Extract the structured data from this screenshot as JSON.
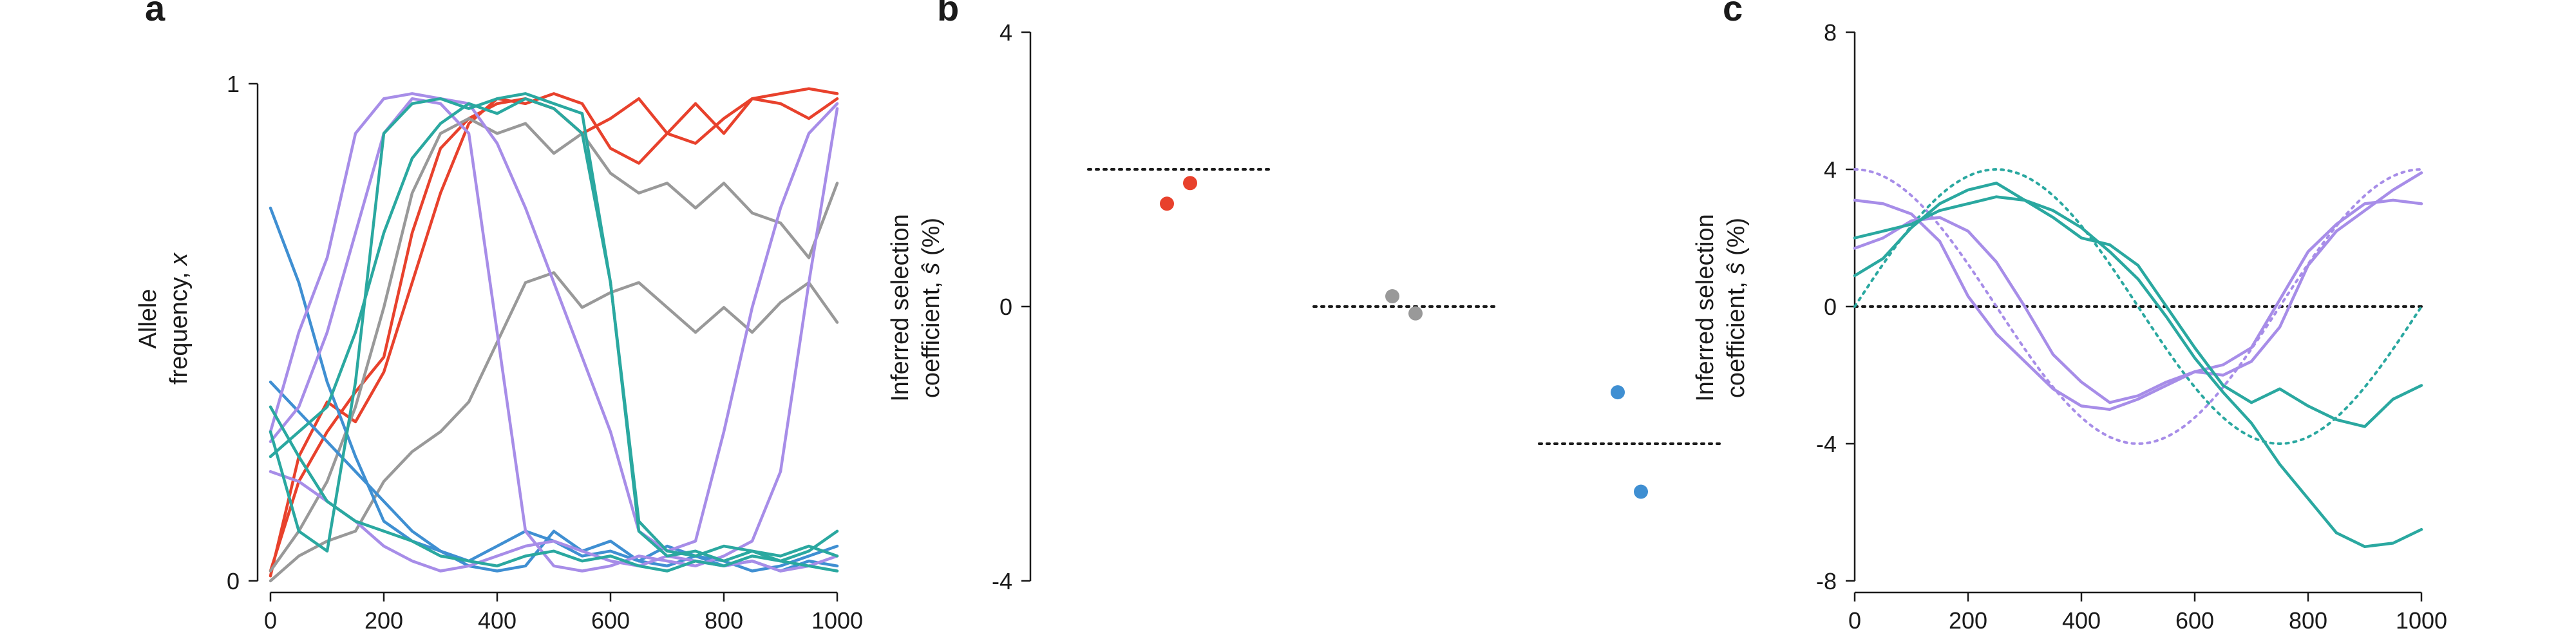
{
  "colors": {
    "red": "#e8412c",
    "gray": "#999999",
    "blue": "#3f8fd2",
    "purple": "#a78de8",
    "teal": "#2aa8a0",
    "axis": "#1a1a1a"
  },
  "chart_data": [
    {
      "id": "a",
      "type": "line",
      "panel_label": "a",
      "ylabel_line1": "Allele",
      "ylabel_line2": "frequency, ",
      "ylabel_var": "x",
      "xlim": [
        0,
        1000
      ],
      "ylim": [
        0,
        1
      ],
      "xticks": [
        "0",
        "200",
        "400",
        "600",
        "800",
        "1000"
      ],
      "yticks": [
        "0",
        "1"
      ],
      "series": [
        {
          "color": "red",
          "x": [
            0,
            50,
            100,
            150,
            200,
            250,
            300,
            350,
            400,
            450,
            500,
            550,
            600,
            650,
            700,
            750,
            800,
            850,
            900,
            950,
            1000
          ],
          "y": [
            0.02,
            0.2,
            0.3,
            0.38,
            0.45,
            0.7,
            0.87,
            0.93,
            0.96,
            0.97,
            0.95,
            0.9,
            0.93,
            0.97,
            0.9,
            0.96,
            0.9,
            0.97,
            0.98,
            0.99,
            0.98
          ]
        },
        {
          "color": "red",
          "x": [
            0,
            50,
            100,
            150,
            200,
            250,
            300,
            350,
            400,
            450,
            500,
            550,
            600,
            650,
            700,
            750,
            800,
            850,
            900,
            950,
            1000
          ],
          "y": [
            0.01,
            0.25,
            0.36,
            0.32,
            0.42,
            0.6,
            0.78,
            0.92,
            0.97,
            0.96,
            0.98,
            0.96,
            0.87,
            0.84,
            0.9,
            0.88,
            0.93,
            0.97,
            0.96,
            0.93,
            0.97
          ]
        },
        {
          "color": "gray",
          "x": [
            0,
            50,
            100,
            150,
            200,
            250,
            300,
            350,
            400,
            450,
            500,
            550,
            600,
            650,
            700,
            750,
            800,
            850,
            900,
            950,
            1000
          ],
          "y": [
            0.0,
            0.05,
            0.08,
            0.1,
            0.2,
            0.26,
            0.3,
            0.36,
            0.48,
            0.6,
            0.62,
            0.55,
            0.58,
            0.6,
            0.55,
            0.5,
            0.55,
            0.5,
            0.56,
            0.6,
            0.52
          ]
        },
        {
          "color": "gray",
          "x": [
            0,
            50,
            100,
            150,
            200,
            250,
            300,
            350,
            400,
            450,
            500,
            550,
            600,
            650,
            700,
            750,
            800,
            850,
            900,
            950,
            1000
          ],
          "y": [
            0.02,
            0.1,
            0.2,
            0.35,
            0.55,
            0.78,
            0.9,
            0.93,
            0.9,
            0.92,
            0.86,
            0.9,
            0.82,
            0.78,
            0.8,
            0.75,
            0.8,
            0.74,
            0.72,
            0.65,
            0.8
          ]
        },
        {
          "color": "blue",
          "x": [
            0,
            50,
            100,
            150,
            200,
            250,
            300,
            350,
            400,
            450,
            500,
            550,
            600,
            650,
            700,
            750,
            800,
            850,
            900,
            950,
            1000
          ],
          "y": [
            0.75,
            0.6,
            0.4,
            0.25,
            0.12,
            0.08,
            0.06,
            0.03,
            0.02,
            0.03,
            0.1,
            0.06,
            0.08,
            0.04,
            0.03,
            0.05,
            0.04,
            0.02,
            0.03,
            0.05,
            0.07
          ]
        },
        {
          "color": "blue",
          "x": [
            0,
            50,
            100,
            150,
            200,
            250,
            300,
            350,
            400,
            450,
            500,
            550,
            600,
            650,
            700,
            750,
            800,
            850,
            900,
            950,
            1000
          ],
          "y": [
            0.4,
            0.34,
            0.28,
            0.22,
            0.16,
            0.1,
            0.06,
            0.04,
            0.07,
            0.1,
            0.08,
            0.05,
            0.06,
            0.04,
            0.07,
            0.05,
            0.03,
            0.04,
            0.02,
            0.04,
            0.03
          ]
        },
        {
          "color": "purple",
          "x": [
            0,
            50,
            100,
            150,
            200,
            250,
            300,
            350,
            400,
            450,
            500,
            550,
            600,
            650,
            700,
            750,
            800,
            850,
            900,
            950,
            1000
          ],
          "y": [
            0.3,
            0.5,
            0.65,
            0.9,
            0.97,
            0.98,
            0.97,
            0.96,
            0.88,
            0.75,
            0.6,
            0.45,
            0.3,
            0.1,
            0.06,
            0.08,
            0.3,
            0.55,
            0.75,
            0.9,
            0.96
          ]
        },
        {
          "color": "purple",
          "x": [
            0,
            50,
            100,
            150,
            200,
            250,
            300,
            350,
            400,
            450,
            500,
            550,
            600,
            650,
            700,
            750,
            800,
            850,
            900,
            950,
            1000
          ],
          "y": [
            0.28,
            0.35,
            0.5,
            0.7,
            0.9,
            0.97,
            0.96,
            0.9,
            0.5,
            0.1,
            0.03,
            0.02,
            0.03,
            0.05,
            0.04,
            0.03,
            0.05,
            0.08,
            0.22,
            0.6,
            0.95
          ]
        },
        {
          "color": "purple",
          "x": [
            0,
            50,
            100,
            150,
            200,
            250,
            300,
            350,
            400,
            450,
            500,
            550,
            600,
            650,
            700,
            750,
            800,
            850,
            900,
            950,
            1000
          ],
          "y": [
            0.22,
            0.2,
            0.16,
            0.12,
            0.07,
            0.04,
            0.02,
            0.03,
            0.05,
            0.07,
            0.08,
            0.06,
            0.04,
            0.03,
            0.05,
            0.04,
            0.03,
            0.04,
            0.02,
            0.03,
            0.05
          ]
        },
        {
          "color": "teal",
          "x": [
            0,
            50,
            100,
            150,
            200,
            250,
            300,
            350,
            400,
            450,
            500,
            550,
            600,
            650,
            700,
            750,
            800,
            850,
            900,
            950,
            1000
          ],
          "y": [
            0.3,
            0.1,
            0.06,
            0.4,
            0.9,
            0.96,
            0.97,
            0.95,
            0.97,
            0.98,
            0.96,
            0.94,
            0.6,
            0.1,
            0.05,
            0.06,
            0.04,
            0.06,
            0.05,
            0.07,
            0.05
          ]
        },
        {
          "color": "teal",
          "x": [
            0,
            50,
            100,
            150,
            200,
            250,
            300,
            350,
            400,
            450,
            500,
            550,
            600,
            650,
            700,
            750,
            800,
            850,
            900,
            950,
            1000
          ],
          "y": [
            0.25,
            0.3,
            0.35,
            0.5,
            0.7,
            0.85,
            0.92,
            0.96,
            0.94,
            0.97,
            0.95,
            0.9,
            0.6,
            0.12,
            0.06,
            0.05,
            0.07,
            0.06,
            0.04,
            0.06,
            0.1
          ]
        },
        {
          "color": "teal",
          "x": [
            0,
            50,
            100,
            150,
            200,
            250,
            300,
            350,
            400,
            450,
            500,
            550,
            600,
            650,
            700,
            750,
            800,
            850,
            900,
            950,
            1000
          ],
          "y": [
            0.35,
            0.25,
            0.16,
            0.12,
            0.1,
            0.08,
            0.05,
            0.04,
            0.03,
            0.05,
            0.06,
            0.04,
            0.05,
            0.03,
            0.02,
            0.04,
            0.03,
            0.05,
            0.04,
            0.03,
            0.02
          ]
        }
      ]
    },
    {
      "id": "b",
      "type": "scatter",
      "panel_label": "b",
      "ylabel_line1": "Inferred selection",
      "ylabel_line2": "coefficient, ",
      "ylabel_var": "ŝ",
      "ylabel_suffix": " (%)",
      "ylim": [
        -4,
        4
      ],
      "yticks": [
        "-4",
        "0",
        "4"
      ],
      "groups": [
        {
          "color": "red",
          "true_value": 2.0,
          "points": [
            1.5,
            1.8
          ]
        },
        {
          "color": "gray",
          "true_value": 0.0,
          "points": [
            0.15,
            -0.1
          ]
        },
        {
          "color": "blue",
          "true_value": -2.0,
          "points": [
            -1.25,
            -2.7
          ]
        }
      ]
    },
    {
      "id": "c",
      "type": "line",
      "panel_label": "c",
      "ylabel_line1": "Inferred selection",
      "ylabel_line2": "coefficient, ",
      "ylabel_var": "ŝ",
      "ylabel_suffix": " (%)",
      "xlim": [
        0,
        1000
      ],
      "ylim": [
        -8,
        8
      ],
      "xticks": [
        "0",
        "200",
        "400",
        "600",
        "800",
        "1000"
      ],
      "yticks": [
        "-8",
        "-4",
        "0",
        "4",
        "8"
      ],
      "zero_line": 0,
      "true_curves": [
        {
          "color": "purple",
          "amplitude": 4,
          "phase": "cos"
        },
        {
          "color": "teal",
          "amplitude": 4,
          "phase": "sin"
        }
      ],
      "series": [
        {
          "color": "purple",
          "x": [
            0,
            50,
            100,
            150,
            200,
            250,
            300,
            350,
            400,
            450,
            500,
            550,
            600,
            650,
            700,
            750,
            800,
            850,
            900,
            950,
            1000
          ],
          "y": [
            3.1,
            3.0,
            2.7,
            1.9,
            0.3,
            -0.8,
            -1.6,
            -2.4,
            -2.9,
            -3.0,
            -2.7,
            -2.3,
            -1.9,
            -1.7,
            -1.2,
            0.2,
            1.6,
            2.4,
            3.0,
            3.1,
            3.0
          ]
        },
        {
          "color": "purple",
          "x": [
            0,
            50,
            100,
            150,
            200,
            250,
            300,
            350,
            400,
            450,
            500,
            550,
            600,
            650,
            700,
            750,
            800,
            850,
            900,
            950,
            1000
          ],
          "y": [
            1.7,
            2.0,
            2.5,
            2.6,
            2.2,
            1.3,
            0.0,
            -1.4,
            -2.2,
            -2.8,
            -2.6,
            -2.2,
            -1.9,
            -2.0,
            -1.6,
            -0.6,
            1.2,
            2.2,
            2.8,
            3.4,
            3.9
          ]
        },
        {
          "color": "teal",
          "x": [
            0,
            50,
            100,
            150,
            200,
            250,
            300,
            350,
            400,
            450,
            500,
            550,
            600,
            650,
            700,
            750,
            800,
            850,
            900,
            950,
            1000
          ],
          "y": [
            0.9,
            1.4,
            2.3,
            3.0,
            3.4,
            3.6,
            3.1,
            2.6,
            2.0,
            1.8,
            1.2,
            0.0,
            -1.2,
            -2.3,
            -2.8,
            -2.4,
            -2.9,
            -3.3,
            -3.5,
            -2.7,
            -2.3
          ]
        },
        {
          "color": "teal",
          "x": [
            0,
            50,
            100,
            150,
            200,
            250,
            300,
            350,
            400,
            450,
            500,
            550,
            600,
            650,
            700,
            750,
            800,
            850,
            900,
            950,
            1000
          ],
          "y": [
            2.0,
            2.2,
            2.4,
            2.8,
            3.0,
            3.2,
            3.1,
            2.8,
            2.3,
            1.6,
            0.8,
            -0.3,
            -1.5,
            -2.5,
            -3.4,
            -4.6,
            -5.6,
            -6.6,
            -7.0,
            -6.9,
            -6.5
          ]
        }
      ]
    }
  ]
}
